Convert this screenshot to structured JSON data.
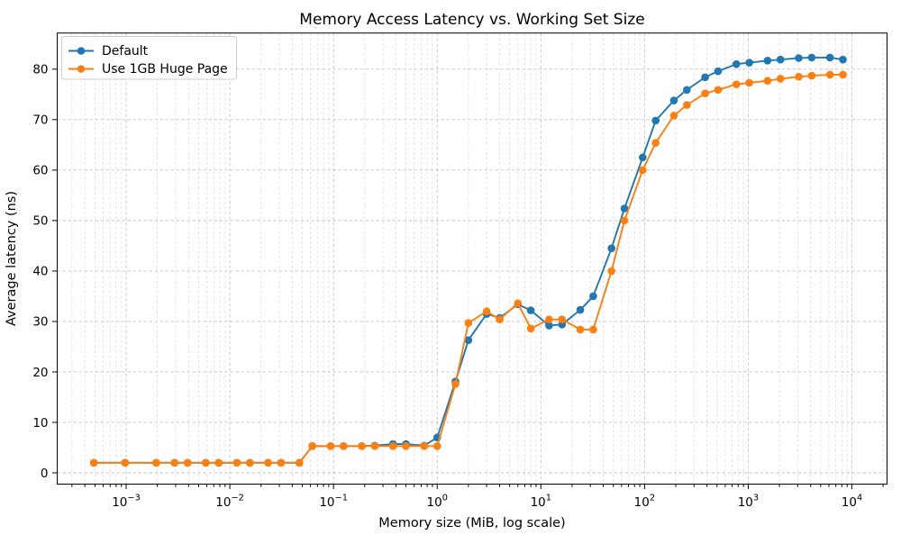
{
  "chart_data": {
    "type": "line",
    "title": "Memory Access Latency vs. Working Set Size",
    "xlabel": "Memory size (MiB, log scale)",
    "ylabel": "Average latency (ns)",
    "grid": "both-major-and-minor-x, major-y, dashed",
    "legend_position": "upper left",
    "x_scale": "log10",
    "axes": {
      "xlim_log10": [
        -3.665,
        4.339
      ],
      "ylim": [
        -2.23,
        87.16
      ],
      "x_tick_exponents": [
        -3,
        -2,
        -1,
        0,
        1,
        2,
        3,
        4
      ],
      "x_tick_base": "10",
      "y_ticks": [
        0,
        10,
        20,
        30,
        40,
        50,
        60,
        70,
        80
      ]
    },
    "x": [
      0.000488,
      0.000977,
      0.00195,
      0.00293,
      0.00391,
      0.00586,
      0.00781,
      0.0117,
      0.0156,
      0.0234,
      0.0312,
      0.0469,
      0.0625,
      0.0938,
      0.125,
      0.1875,
      0.25,
      0.375,
      0.5,
      0.75,
      1,
      1.5,
      2,
      3,
      4,
      6,
      8,
      12,
      16,
      24,
      32,
      48,
      64,
      96,
      128,
      192,
      256,
      384,
      512,
      768,
      1024,
      1536,
      2048,
      3072,
      4096,
      6144,
      8192
    ],
    "series": [
      {
        "name": "Default",
        "color": "#1f77b4",
        "marker": "circle",
        "values": [
          2.0,
          2.0,
          2.0,
          2.0,
          2.0,
          2.0,
          2.0,
          2.0,
          2.0,
          2.0,
          2.0,
          2.0,
          5.3,
          5.3,
          5.3,
          5.3,
          5.4,
          5.7,
          5.7,
          5.4,
          7.0,
          18.1,
          26.3,
          31.5,
          30.7,
          33.4,
          32.2,
          29.2,
          29.4,
          32.3,
          35.0,
          44.5,
          52.4,
          62.5,
          69.8,
          73.8,
          75.9,
          78.4,
          79.6,
          81.0,
          81.3,
          81.7,
          81.9,
          82.2,
          82.3,
          82.3,
          81.9
        ]
      },
      {
        "name": "Use 1GB Huge Page",
        "color": "#ff7f0e",
        "marker": "circle",
        "values": [
          2.0,
          2.0,
          2.0,
          2.0,
          2.0,
          2.0,
          2.0,
          2.0,
          2.0,
          2.0,
          2.0,
          2.0,
          5.3,
          5.3,
          5.3,
          5.3,
          5.3,
          5.3,
          5.3,
          5.3,
          5.3,
          17.6,
          29.7,
          32.0,
          30.4,
          33.6,
          28.6,
          30.4,
          30.4,
          28.4,
          28.4,
          40.0,
          50.0,
          60.0,
          65.4,
          70.8,
          72.9,
          75.2,
          75.9,
          77.0,
          77.3,
          77.7,
          78.1,
          78.5,
          78.7,
          78.9,
          78.9
        ]
      }
    ]
  }
}
